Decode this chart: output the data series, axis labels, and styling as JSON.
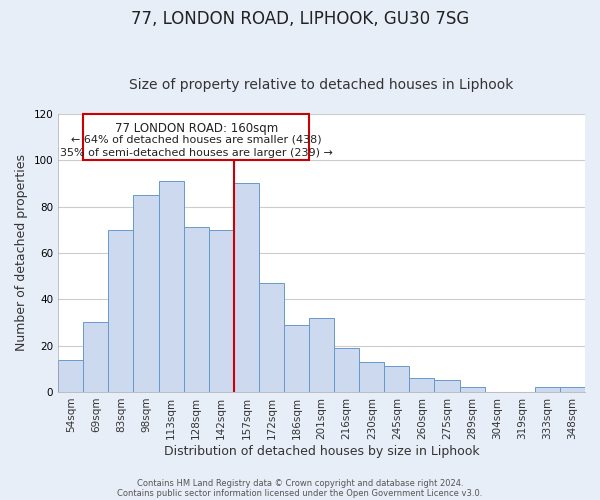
{
  "title": "77, LONDON ROAD, LIPHOOK, GU30 7SG",
  "subtitle": "Size of property relative to detached houses in Liphook",
  "xlabel": "Distribution of detached houses by size in Liphook",
  "ylabel": "Number of detached properties",
  "categories": [
    "54sqm",
    "69sqm",
    "83sqm",
    "98sqm",
    "113sqm",
    "128sqm",
    "142sqm",
    "157sqm",
    "172sqm",
    "186sqm",
    "201sqm",
    "216sqm",
    "230sqm",
    "245sqm",
    "260sqm",
    "275sqm",
    "289sqm",
    "304sqm",
    "319sqm",
    "333sqm",
    "348sqm"
  ],
  "values": [
    14,
    30,
    70,
    85,
    91,
    71,
    70,
    90,
    47,
    29,
    32,
    19,
    13,
    11,
    6,
    5,
    2,
    0,
    0,
    2,
    2
  ],
  "bar_color": "#ccd9ee",
  "bar_edge_color": "#6699cc",
  "vline_color": "#cc0000",
  "vline_bar_index": 7,
  "ylim": [
    0,
    120
  ],
  "annotation_title": "77 LONDON ROAD: 160sqm",
  "annotation_line1": "← 64% of detached houses are smaller (438)",
  "annotation_line2": "35% of semi-detached houses are larger (239) →",
  "annotation_box_facecolor": "#ffffff",
  "annotation_box_edgecolor": "#cc0000",
  "footer1": "Contains HM Land Registry data © Crown copyright and database right 2024.",
  "footer2": "Contains public sector information licensed under the Open Government Licence v3.0.",
  "bg_color": "#e8eef8",
  "plot_bg_color": "#ffffff",
  "grid_color": "#cccccc",
  "title_fontsize": 12,
  "subtitle_fontsize": 10,
  "axis_label_fontsize": 9,
  "tick_fontsize": 7.5,
  "footer_fontsize": 6,
  "ann_fontsize": 8.5
}
